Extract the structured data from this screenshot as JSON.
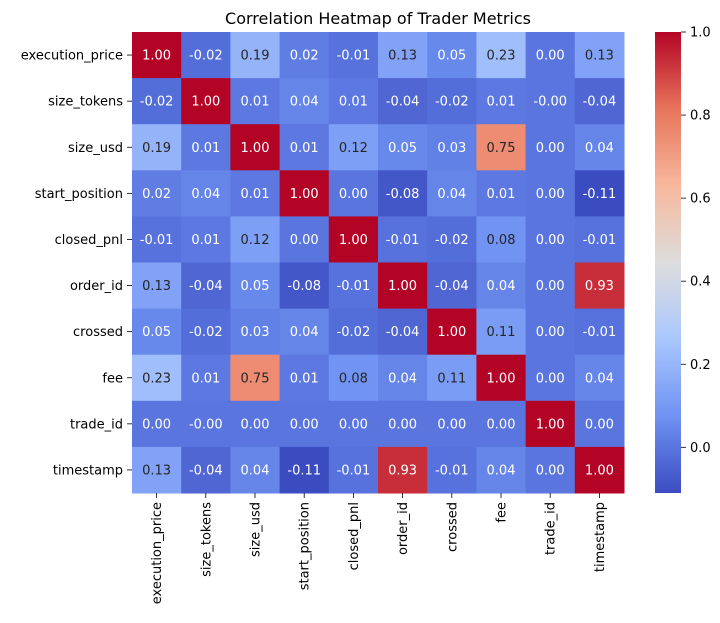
{
  "chart_data": {
    "type": "heatmap",
    "title": "Correlation Heatmap of Trader Metrics",
    "row_labels": [
      "execution_price",
      "size_tokens",
      "size_usd",
      "start_position",
      "closed_pnl",
      "order_id",
      "crossed",
      "fee",
      "trade_id",
      "timestamp"
    ],
    "col_labels": [
      "execution_price",
      "size_tokens",
      "size_usd",
      "start_position",
      "closed_pnl",
      "order_id",
      "crossed",
      "fee",
      "trade_id",
      "timestamp"
    ],
    "values": [
      [
        1.0,
        -0.02,
        0.19,
        0.02,
        -0.01,
        0.13,
        0.05,
        0.23,
        0.0,
        0.13
      ],
      [
        -0.02,
        1.0,
        0.01,
        0.04,
        0.01,
        -0.04,
        -0.02,
        0.01,
        -0.0,
        -0.04
      ],
      [
        0.19,
        0.01,
        1.0,
        0.01,
        0.12,
        0.05,
        0.03,
        0.75,
        0.0,
        0.04
      ],
      [
        0.02,
        0.04,
        0.01,
        1.0,
        0.0,
        -0.08,
        0.04,
        0.01,
        0.0,
        -0.11
      ],
      [
        -0.01,
        0.01,
        0.12,
        0.0,
        1.0,
        -0.01,
        -0.02,
        0.08,
        0.0,
        -0.01
      ],
      [
        0.13,
        -0.04,
        0.05,
        -0.08,
        -0.01,
        1.0,
        -0.04,
        0.04,
        0.0,
        0.93
      ],
      [
        0.05,
        -0.02,
        0.03,
        0.04,
        -0.02,
        -0.04,
        1.0,
        0.11,
        0.0,
        -0.01
      ],
      [
        0.23,
        0.01,
        0.75,
        0.01,
        0.08,
        0.04,
        0.11,
        1.0,
        0.0,
        0.04
      ],
      [
        0.0,
        -0.0,
        0.0,
        0.0,
        0.0,
        0.0,
        0.0,
        0.0,
        1.0,
        0.0
      ],
      [
        0.13,
        -0.04,
        0.04,
        -0.11,
        -0.01,
        0.93,
        -0.01,
        0.04,
        0.0,
        1.0
      ]
    ],
    "value_format": "0.00",
    "colormap": "coolwarm",
    "vmin": -0.11,
    "vmax": 1.0,
    "colorbar_ticks": [
      "0.0",
      "0.2",
      "0.4",
      "0.6",
      "0.8",
      "1.0"
    ],
    "colorbar_tick_values": [
      0.0,
      0.2,
      0.4,
      0.6,
      0.8,
      1.0
    ],
    "colormap_stops": [
      "#3b4cc0",
      "#6f92f3",
      "#aac7fd",
      "#dddddd",
      "#f7b89c",
      "#e7745b",
      "#b40426"
    ]
  }
}
